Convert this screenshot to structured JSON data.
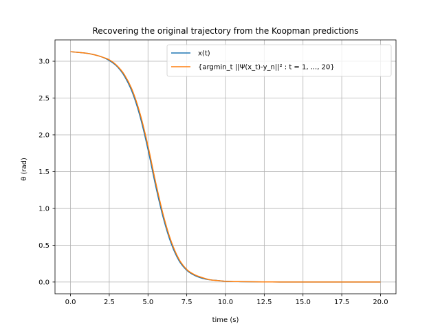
{
  "chart_data": {
    "type": "line",
    "title": "Recovering the original trajectory from the Koopman predictions",
    "xlabel": "time (s)",
    "ylabel": "θ (rad)",
    "xlim": [
      -1.0,
      21.0
    ],
    "ylim": [
      -0.16,
      3.29
    ],
    "grid": true,
    "legend_position": "top-right",
    "xticks": [
      0.0,
      2.5,
      5.0,
      7.5,
      10.0,
      12.5,
      15.0,
      17.5,
      20.0
    ],
    "xtick_labels": [
      "0.0",
      "2.5",
      "5.0",
      "7.5",
      "10.0",
      "12.5",
      "15.0",
      "17.5",
      "20.0"
    ],
    "yticks": [
      0.0,
      0.5,
      1.0,
      1.5,
      2.0,
      2.5,
      3.0
    ],
    "ytick_labels": [
      "0.0",
      "0.5",
      "1.0",
      "1.5",
      "2.0",
      "2.5",
      "3.0"
    ],
    "series": [
      {
        "name": "x(t)",
        "color": "#1f77b4",
        "x": [
          0.0,
          0.5,
          1.0,
          1.5,
          2.0,
          2.5,
          3.0,
          3.5,
          4.0,
          4.5,
          5.0,
          5.5,
          6.0,
          6.5,
          7.0,
          7.5,
          8.0,
          8.5,
          9.0,
          9.5,
          10.0,
          11.0,
          12.0,
          13.0,
          14.0,
          15.0,
          16.0,
          17.0,
          18.0,
          19.0,
          20.0
        ],
        "y": [
          3.13,
          3.12,
          3.11,
          3.09,
          3.06,
          3.01,
          2.93,
          2.79,
          2.57,
          2.24,
          1.8,
          1.3,
          0.86,
          0.52,
          0.29,
          0.16,
          0.09,
          0.05,
          0.03,
          0.02,
          0.01,
          0.005,
          0.002,
          0.001,
          0.0,
          0.0,
          0.0,
          0.0,
          0.0,
          0.0,
          0.0
        ]
      },
      {
        "name": "{argmin_t ||Ψ(x_t)-y_n||² : t = 1, ..., 20}",
        "color": "#ff7f0e",
        "x": [
          0.0,
          0.5,
          1.0,
          1.5,
          2.0,
          2.5,
          3.0,
          3.5,
          4.0,
          4.5,
          5.0,
          5.5,
          6.0,
          6.5,
          7.0,
          7.5,
          8.0,
          8.5,
          9.0,
          9.5,
          10.0,
          11.0,
          12.0,
          13.0,
          14.0,
          15.0,
          16.0,
          17.0,
          18.0,
          19.0,
          20.0
        ],
        "y": [
          3.13,
          3.12,
          3.11,
          3.09,
          3.06,
          3.02,
          2.94,
          2.81,
          2.6,
          2.28,
          1.85,
          1.35,
          0.9,
          0.55,
          0.31,
          0.17,
          0.1,
          0.06,
          0.03,
          0.02,
          0.01,
          0.005,
          0.002,
          0.001,
          0.0,
          0.0,
          0.0,
          0.0,
          0.0,
          0.0,
          0.0
        ]
      }
    ]
  }
}
